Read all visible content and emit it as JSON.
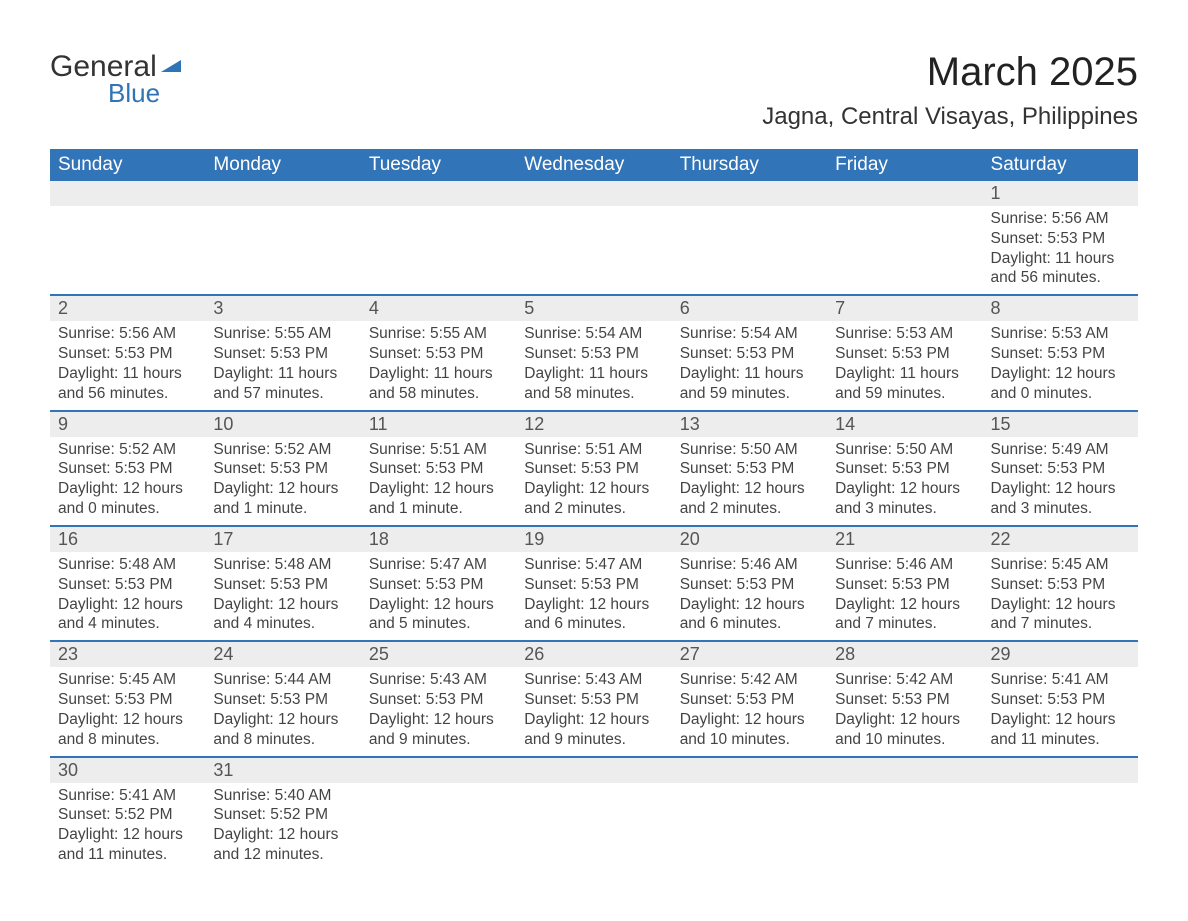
{
  "logo": {
    "text1": "General",
    "text2": "Blue",
    "flag_color": "#2f74b5"
  },
  "title": "March 2025",
  "location": "Jagna, Central Visayas, Philippines",
  "columns": [
    "Sunday",
    "Monday",
    "Tuesday",
    "Wednesday",
    "Thursday",
    "Friday",
    "Saturday"
  ],
  "colors": {
    "header_bg": "#3174b8",
    "header_text": "#ffffff",
    "daynum_bg": "#ededed",
    "row_border": "#3174b8",
    "body_text": "#444444",
    "title_text": "#222222",
    "background": "#ffffff"
  },
  "weeks": [
    [
      null,
      null,
      null,
      null,
      null,
      null,
      {
        "n": "1",
        "sunrise": "Sunrise: 5:56 AM",
        "sunset": "Sunset: 5:53 PM",
        "daylight": "Daylight: 11 hours and 56 minutes."
      }
    ],
    [
      {
        "n": "2",
        "sunrise": "Sunrise: 5:56 AM",
        "sunset": "Sunset: 5:53 PM",
        "daylight": "Daylight: 11 hours and 56 minutes."
      },
      {
        "n": "3",
        "sunrise": "Sunrise: 5:55 AM",
        "sunset": "Sunset: 5:53 PM",
        "daylight": "Daylight: 11 hours and 57 minutes."
      },
      {
        "n": "4",
        "sunrise": "Sunrise: 5:55 AM",
        "sunset": "Sunset: 5:53 PM",
        "daylight": "Daylight: 11 hours and 58 minutes."
      },
      {
        "n": "5",
        "sunrise": "Sunrise: 5:54 AM",
        "sunset": "Sunset: 5:53 PM",
        "daylight": "Daylight: 11 hours and 58 minutes."
      },
      {
        "n": "6",
        "sunrise": "Sunrise: 5:54 AM",
        "sunset": "Sunset: 5:53 PM",
        "daylight": "Daylight: 11 hours and 59 minutes."
      },
      {
        "n": "7",
        "sunrise": "Sunrise: 5:53 AM",
        "sunset": "Sunset: 5:53 PM",
        "daylight": "Daylight: 11 hours and 59 minutes."
      },
      {
        "n": "8",
        "sunrise": "Sunrise: 5:53 AM",
        "sunset": "Sunset: 5:53 PM",
        "daylight": "Daylight: 12 hours and 0 minutes."
      }
    ],
    [
      {
        "n": "9",
        "sunrise": "Sunrise: 5:52 AM",
        "sunset": "Sunset: 5:53 PM",
        "daylight": "Daylight: 12 hours and 0 minutes."
      },
      {
        "n": "10",
        "sunrise": "Sunrise: 5:52 AM",
        "sunset": "Sunset: 5:53 PM",
        "daylight": "Daylight: 12 hours and 1 minute."
      },
      {
        "n": "11",
        "sunrise": "Sunrise: 5:51 AM",
        "sunset": "Sunset: 5:53 PM",
        "daylight": "Daylight: 12 hours and 1 minute."
      },
      {
        "n": "12",
        "sunrise": "Sunrise: 5:51 AM",
        "sunset": "Sunset: 5:53 PM",
        "daylight": "Daylight: 12 hours and 2 minutes."
      },
      {
        "n": "13",
        "sunrise": "Sunrise: 5:50 AM",
        "sunset": "Sunset: 5:53 PM",
        "daylight": "Daylight: 12 hours and 2 minutes."
      },
      {
        "n": "14",
        "sunrise": "Sunrise: 5:50 AM",
        "sunset": "Sunset: 5:53 PM",
        "daylight": "Daylight: 12 hours and 3 minutes."
      },
      {
        "n": "15",
        "sunrise": "Sunrise: 5:49 AM",
        "sunset": "Sunset: 5:53 PM",
        "daylight": "Daylight: 12 hours and 3 minutes."
      }
    ],
    [
      {
        "n": "16",
        "sunrise": "Sunrise: 5:48 AM",
        "sunset": "Sunset: 5:53 PM",
        "daylight": "Daylight: 12 hours and 4 minutes."
      },
      {
        "n": "17",
        "sunrise": "Sunrise: 5:48 AM",
        "sunset": "Sunset: 5:53 PM",
        "daylight": "Daylight: 12 hours and 4 minutes."
      },
      {
        "n": "18",
        "sunrise": "Sunrise: 5:47 AM",
        "sunset": "Sunset: 5:53 PM",
        "daylight": "Daylight: 12 hours and 5 minutes."
      },
      {
        "n": "19",
        "sunrise": "Sunrise: 5:47 AM",
        "sunset": "Sunset: 5:53 PM",
        "daylight": "Daylight: 12 hours and 6 minutes."
      },
      {
        "n": "20",
        "sunrise": "Sunrise: 5:46 AM",
        "sunset": "Sunset: 5:53 PM",
        "daylight": "Daylight: 12 hours and 6 minutes."
      },
      {
        "n": "21",
        "sunrise": "Sunrise: 5:46 AM",
        "sunset": "Sunset: 5:53 PM",
        "daylight": "Daylight: 12 hours and 7 minutes."
      },
      {
        "n": "22",
        "sunrise": "Sunrise: 5:45 AM",
        "sunset": "Sunset: 5:53 PM",
        "daylight": "Daylight: 12 hours and 7 minutes."
      }
    ],
    [
      {
        "n": "23",
        "sunrise": "Sunrise: 5:45 AM",
        "sunset": "Sunset: 5:53 PM",
        "daylight": "Daylight: 12 hours and 8 minutes."
      },
      {
        "n": "24",
        "sunrise": "Sunrise: 5:44 AM",
        "sunset": "Sunset: 5:53 PM",
        "daylight": "Daylight: 12 hours and 8 minutes."
      },
      {
        "n": "25",
        "sunrise": "Sunrise: 5:43 AM",
        "sunset": "Sunset: 5:53 PM",
        "daylight": "Daylight: 12 hours and 9 minutes."
      },
      {
        "n": "26",
        "sunrise": "Sunrise: 5:43 AM",
        "sunset": "Sunset: 5:53 PM",
        "daylight": "Daylight: 12 hours and 9 minutes."
      },
      {
        "n": "27",
        "sunrise": "Sunrise: 5:42 AM",
        "sunset": "Sunset: 5:53 PM",
        "daylight": "Daylight: 12 hours and 10 minutes."
      },
      {
        "n": "28",
        "sunrise": "Sunrise: 5:42 AM",
        "sunset": "Sunset: 5:53 PM",
        "daylight": "Daylight: 12 hours and 10 minutes."
      },
      {
        "n": "29",
        "sunrise": "Sunrise: 5:41 AM",
        "sunset": "Sunset: 5:53 PM",
        "daylight": "Daylight: 12 hours and 11 minutes."
      }
    ],
    [
      {
        "n": "30",
        "sunrise": "Sunrise: 5:41 AM",
        "sunset": "Sunset: 5:52 PM",
        "daylight": "Daylight: 12 hours and 11 minutes."
      },
      {
        "n": "31",
        "sunrise": "Sunrise: 5:40 AM",
        "sunset": "Sunset: 5:52 PM",
        "daylight": "Daylight: 12 hours and 12 minutes."
      },
      null,
      null,
      null,
      null,
      null
    ]
  ]
}
